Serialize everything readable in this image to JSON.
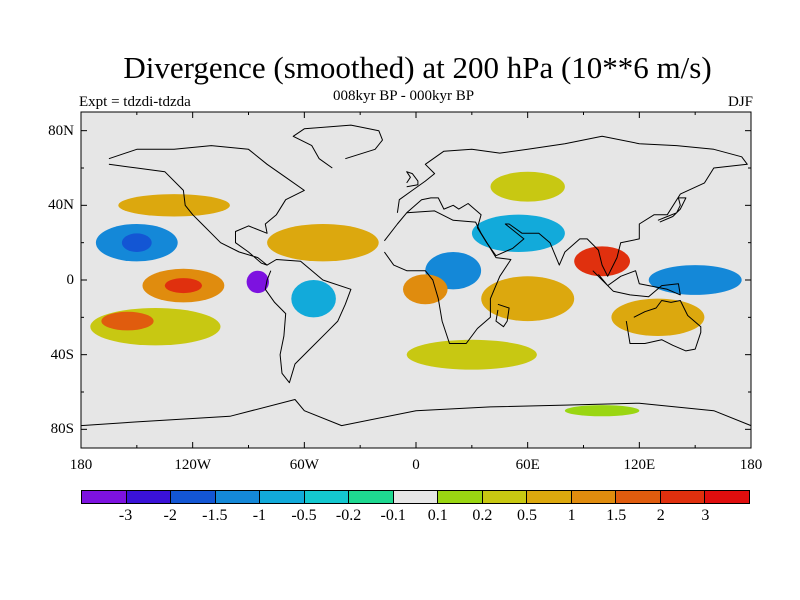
{
  "title": "Divergence (smoothed) at 200 hPa (10**6 m/s)",
  "experiment": "Expt = tdzdi-tdzda",
  "subtitle": "008kyr BP - 000kyr BP",
  "season": "DJF",
  "background_color": "#e6e6e6",
  "coastline_color": "#000000",
  "chart_data": {
    "type": "heatmap",
    "projection": "cylindrical-equidistant",
    "lon_range": [
      -180,
      180
    ],
    "lat_range": [
      -90,
      90
    ],
    "x_ticks": [
      {
        "value": -180,
        "label": "180"
      },
      {
        "value": -120,
        "label": "120W"
      },
      {
        "value": -60,
        "label": "60W"
      },
      {
        "value": 0,
        "label": "0"
      },
      {
        "value": 60,
        "label": "60E"
      },
      {
        "value": 120,
        "label": "120E"
      },
      {
        "value": 180,
        "label": "180"
      }
    ],
    "y_ticks": [
      {
        "value": 80,
        "label": "80N"
      },
      {
        "value": 40,
        "label": "40N"
      },
      {
        "value": 0,
        "label": "0"
      },
      {
        "value": -40,
        "label": "40S"
      },
      {
        "value": -80,
        "label": "80S"
      }
    ],
    "colorbar": {
      "levels": [
        "-3",
        "-2",
        "-1.5",
        "-1",
        "-0.5",
        "-0.2",
        "-0.1",
        "0.1",
        "0.2",
        "0.5",
        "1",
        "1.5",
        "2",
        "3"
      ],
      "colors": [
        "#7d12e0",
        "#3a12d8",
        "#1356d4",
        "#1488d8",
        "#12aada",
        "#14c8d0",
        "#1ed890",
        "#e6e6e6",
        "#9ad612",
        "#c8c812",
        "#dca80e",
        "#e08c0e",
        "#e05c0e",
        "#e0300e",
        "#e00e0e"
      ]
    },
    "regions": [
      {
        "name": "central-pacific-convergence",
        "lon": -150,
        "lat": 20,
        "rx": 22,
        "ry": 10,
        "level": 3
      },
      {
        "name": "central-pacific-core",
        "lon": -150,
        "lat": 20,
        "rx": 8,
        "ry": 5,
        "level": 2
      },
      {
        "name": "east-pacific-divergence",
        "lon": -125,
        "lat": -3,
        "rx": 22,
        "ry": 9,
        "level": 11
      },
      {
        "name": "east-pacific-core",
        "lon": -125,
        "lat": -3,
        "rx": 10,
        "ry": 4,
        "level": 13
      },
      {
        "name": "panama-convergence",
        "lon": -85,
        "lat": -1,
        "rx": 6,
        "ry": 6,
        "level": 0
      },
      {
        "name": "north-atlantic-positive",
        "lon": -50,
        "lat": 20,
        "rx": 30,
        "ry": 10,
        "level": 10
      },
      {
        "name": "south-pacific-positive",
        "lon": -140,
        "lat": -25,
        "rx": 35,
        "ry": 10,
        "level": 9
      },
      {
        "name": "south-pacific-core",
        "lon": -155,
        "lat": -22,
        "rx": 14,
        "ry": 5,
        "level": 12
      },
      {
        "name": "south-america-negative",
        "lon": -55,
        "lat": -10,
        "rx": 12,
        "ry": 10,
        "level": 4
      },
      {
        "name": "africa-convergence",
        "lon": 20,
        "lat": 5,
        "rx": 15,
        "ry": 10,
        "level": 3
      },
      {
        "name": "west-africa-divergence",
        "lon": 5,
        "lat": -5,
        "rx": 12,
        "ry": 8,
        "level": 11
      },
      {
        "name": "indian-ocean-positive",
        "lon": 60,
        "lat": -10,
        "rx": 25,
        "ry": 12,
        "level": 10
      },
      {
        "name": "arabia-negative",
        "lon": 55,
        "lat": 25,
        "rx": 25,
        "ry": 10,
        "level": 4
      },
      {
        "name": "southeast-asia-divergence",
        "lon": 100,
        "lat": 10,
        "rx": 15,
        "ry": 8,
        "level": 13
      },
      {
        "name": "west-pacific-negative",
        "lon": 150,
        "lat": 0,
        "rx": 25,
        "ry": 8,
        "level": 3
      },
      {
        "name": "australia-positive",
        "lon": 130,
        "lat": -20,
        "rx": 25,
        "ry": 10,
        "level": 10
      },
      {
        "name": "north-pacific-positive",
        "lon": -130,
        "lat": 40,
        "rx": 30,
        "ry": 6,
        "level": 10
      },
      {
        "name": "eurasia-positive",
        "lon": 60,
        "lat": 50,
        "rx": 20,
        "ry": 8,
        "level": 9
      },
      {
        "name": "southern-ocean-positive",
        "lon": 30,
        "lat": -40,
        "rx": 35,
        "ry": 8,
        "level": 9
      },
      {
        "name": "antarctic-positive",
        "lon": 100,
        "lat": -70,
        "rx": 20,
        "ry": 3,
        "level": 8
      }
    ]
  }
}
